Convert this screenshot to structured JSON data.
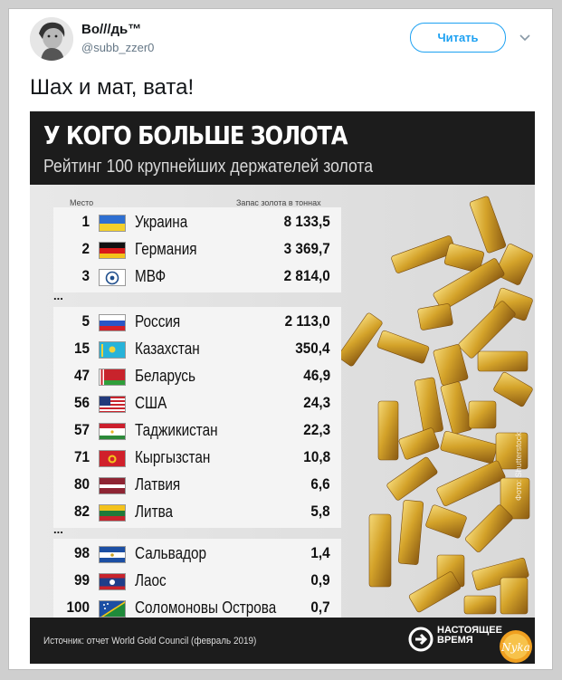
{
  "tweet": {
    "author_name": "Во///дь™",
    "author_handle": "@subb_zzer0",
    "follow_label": "Читать",
    "text": "Шах и мат, вата!"
  },
  "infographic": {
    "title": "У КОГО БОЛЬШЕ ЗОЛОТА",
    "subtitle": "Рейтинг 100 крупнейших держателей золота",
    "col_place": "Место",
    "col_amount": "Запас золота в тоннах",
    "ellipsis": "...",
    "groups": [
      [
        {
          "rank": "1",
          "country": "Украина",
          "amount": "8 133,5",
          "flag": "ukraine"
        },
        {
          "rank": "2",
          "country": "Германия",
          "amount": "3 369,7",
          "flag": "germany"
        },
        {
          "rank": "3",
          "country": "МВФ",
          "amount": "2 814,0",
          "flag": "imf"
        }
      ],
      [
        {
          "rank": "5",
          "country": "Россия",
          "amount": "2 113,0",
          "flag": "russia"
        },
        {
          "rank": "15",
          "country": "Казахстан",
          "amount": "350,4",
          "flag": "kazakhstan"
        },
        {
          "rank": "47",
          "country": "Беларусь",
          "amount": "46,9",
          "flag": "belarus"
        },
        {
          "rank": "56",
          "country": "США",
          "amount": "24,3",
          "flag": "usa"
        },
        {
          "rank": "57",
          "country": "Таджикистан",
          "amount": "22,3",
          "flag": "tajikistan"
        },
        {
          "rank": "71",
          "country": "Кыргызстан",
          "amount": "10,8",
          "flag": "kyrgyzstan"
        },
        {
          "rank": "80",
          "country": "Латвия",
          "amount": "6,6",
          "flag": "latvia"
        },
        {
          "rank": "82",
          "country": "Литва",
          "amount": "5,8",
          "flag": "lithuania"
        }
      ],
      [
        {
          "rank": "98",
          "country": "Сальвадор",
          "amount": "1,4",
          "flag": "el-salvador"
        },
        {
          "rank": "99",
          "country": "Лаос",
          "amount": "0,9",
          "flag": "laos"
        },
        {
          "rank": "100",
          "country": "Соломоновы Острова",
          "amount": "0,7",
          "flag": "solomon-islands"
        }
      ]
    ],
    "source": "Источник: отчет World Gold Council (февраль 2019)",
    "brand_line1": "НАСТОЯЩЕЕ",
    "brand_line2": "ВРЕМЯ",
    "watermark": "Фото: Shutterstock",
    "badge_text": "Nyka",
    "colors": {
      "header_bg": "#1c1c1c",
      "gold": "#d4a32a",
      "follow_blue": "#1da1f2"
    }
  }
}
